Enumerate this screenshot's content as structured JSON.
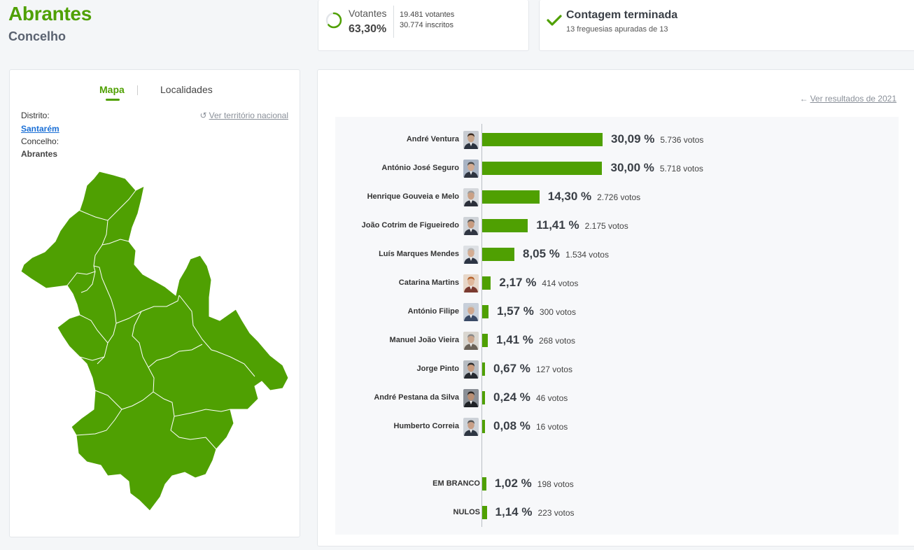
{
  "header": {
    "title": "Abrantes",
    "subtitle": "Concelho"
  },
  "votantes": {
    "label": "Votantes",
    "percent": "63,30%",
    "participation": 0.633,
    "votantes_text": "19.481 votantes",
    "inscritos_text": "30.774 inscritos"
  },
  "contagem": {
    "title": "Contagem terminada",
    "subtitle": "13 freguesias apuradas de 13"
  },
  "map_panel": {
    "tabs": [
      "Mapa",
      "Localidades"
    ],
    "distrito_label": "Distrito:",
    "distrito_value": "Santarém",
    "concelho_label": "Concelho:",
    "concelho_value": "Abrantes",
    "national_link": "Ver território nacional",
    "map_color": "#4fa002"
  },
  "results": {
    "previous_link": "Ver resultados de 2021",
    "candidates": [
      {
        "name": "André Ventura",
        "pct": "30,09 %",
        "votes": "5.736 votos",
        "value": 30.09,
        "skin": "#c9a58a",
        "hair": "#3a2a20",
        "suit": "#2b3340",
        "bg": "#c8ccd2"
      },
      {
        "name": "António José Seguro",
        "pct": "30,00 %",
        "votes": "5.718 votos",
        "value": 30.0,
        "skin": "#d2ab92",
        "hair": "#4a4a4a",
        "suit": "#2e3440",
        "bg": "#a9b4c4"
      },
      {
        "name": "Henrique Gouveia e Melo",
        "pct": "14,30 %",
        "votes": "2.726 votos",
        "value": 14.3,
        "skin": "#caa186",
        "hair": "#9a9a9a",
        "suit": "#2b2f3a",
        "bg": "#d5d8dc"
      },
      {
        "name": "João Cotrim de Figueiredo",
        "pct": "11,41 %",
        "votes": "2.175 votos",
        "value": 11.41,
        "skin": "#c89c80",
        "hair": "#5a5a5a",
        "suit": "#303642",
        "bg": "#cfd3d8"
      },
      {
        "name": "Luís Marques Mendes",
        "pct": "8,05 %",
        "votes": "1.534 votos",
        "value": 8.05,
        "skin": "#d4ad93",
        "hair": "#b5b5b5",
        "suit": "#2c3444",
        "bg": "#dde0e4"
      },
      {
        "name": "Catarina Martins",
        "pct": "2,17 %",
        "votes": "414 votos",
        "value": 2.17,
        "skin": "#e0b89c",
        "hair": "#b5622a",
        "suit": "#7a3a30",
        "bg": "#e7d7c9"
      },
      {
        "name": "António Filipe",
        "pct": "1,57 %",
        "votes": "300 votos",
        "value": 1.57,
        "skin": "#d0a88e",
        "hair": "#c8c8c8",
        "suit": "#3a4a66",
        "bg": "#c7cfda"
      },
      {
        "name": "Manuel João Vieira",
        "pct": "1,41 %",
        "votes": "268 votos",
        "value": 1.41,
        "skin": "#c9a68e",
        "hair": "#888888",
        "suit": "#6a6258",
        "bg": "#d9d6d0"
      },
      {
        "name": "Jorge Pinto",
        "pct": "0,67 %",
        "votes": "127 votos",
        "value": 0.67,
        "skin": "#c89a7c",
        "hair": "#2a2a2a",
        "suit": "#262a30",
        "bg": "#b7bcc2"
      },
      {
        "name": "André Pestana da Silva",
        "pct": "0,24 %",
        "votes": "46 votos",
        "value": 0.24,
        "skin": "#b98f74",
        "hair": "#2a2522",
        "suit": "#1f2226",
        "bg": "#8a8f96"
      },
      {
        "name": "Humberto Correia",
        "pct": "0,08 %",
        "votes": "16 votos",
        "value": 0.08,
        "skin": "#c9a088",
        "hair": "#555555",
        "suit": "#2e3642",
        "bg": "#cdd2d8"
      }
    ],
    "extras": [
      {
        "name": "EM BRANCO",
        "pct": "1,02 %",
        "votes": "198 votos",
        "value": 1.02
      },
      {
        "name": "NULOS",
        "pct": "1,14 %",
        "votes": "223 votos",
        "value": 1.14
      }
    ]
  }
}
